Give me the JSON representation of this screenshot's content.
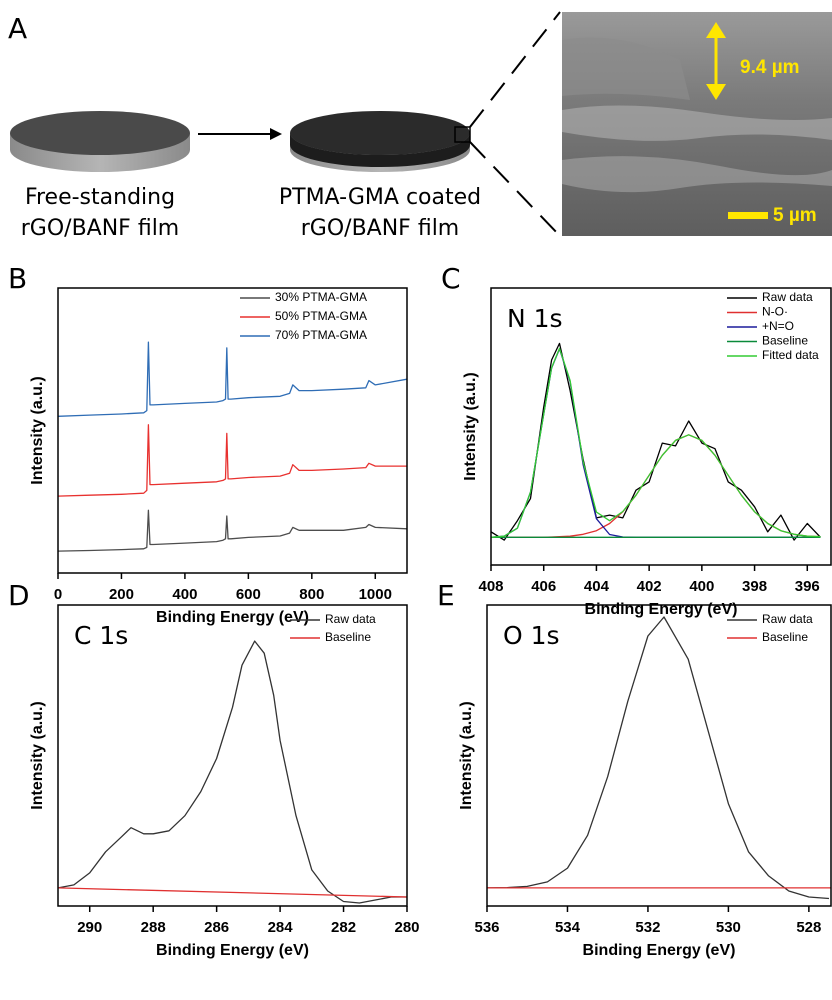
{
  "figure_a": {
    "label": "A",
    "captions": [
      [
        "Free-standing",
        "rGO/BANF film"
      ],
      [
        "PTMA-GMA coated",
        "rGO/BANF film"
      ]
    ],
    "sem_labels": [
      "9.4 µm",
      "5 µm"
    ]
  },
  "chart_data": [
    {
      "type": "line",
      "panel": "B",
      "x_label": "Binding Energy (eV)",
      "y_label": "Intensity (a.u.)",
      "legend": "upper right",
      "x": [
        0,
        100,
        200,
        270,
        280,
        285,
        290,
        300,
        400,
        500,
        520,
        528,
        532,
        536,
        545,
        600,
        700,
        730,
        740,
        760,
        800,
        900,
        970,
        980,
        1000,
        1100
      ],
      "xlim": [
        0,
        1100
      ],
      "xticks": [
        0,
        200,
        400,
        600,
        800,
        1000
      ],
      "ylim": [
        0,
        100
      ],
      "series": [
        {
          "name": "30% PTMA-GMA",
          "color": "#4d4d4d",
          "values": [
            7.7,
            7.9,
            8.2,
            8.5,
            9,
            22,
            10,
            10,
            10.5,
            11,
            11.5,
            12,
            20,
            12,
            12,
            12.5,
            13,
            14,
            16,
            15,
            15,
            15,
            16,
            17,
            16,
            15.5
          ]
        },
        {
          "name": "50% PTMA-GMA",
          "color": "#e8312f",
          "values": [
            27,
            27.3,
            27.6,
            28,
            29,
            52,
            31,
            31,
            31.5,
            32,
            32.5,
            33,
            49,
            33,
            33,
            33.5,
            34,
            35,
            38,
            36,
            36,
            36.5,
            37,
            38.5,
            37.5,
            37.5
          ]
        },
        {
          "name": "70% PTMA-GMA",
          "color": "#2f6db5",
          "values": [
            55,
            55.4,
            55.8,
            56.2,
            57,
            81,
            59,
            59,
            59.5,
            60,
            60.5,
            61,
            79,
            61,
            61,
            61.5,
            62,
            63,
            66,
            64,
            64,
            64.5,
            65,
            67.5,
            66,
            68
          ]
        }
      ]
    },
    {
      "type": "line",
      "panel": "C",
      "annotation": "N 1s",
      "x_label": "Binding Energy (eV)",
      "y_label": "Intensity (a.u.)",
      "legend": "upper right",
      "x": [
        408,
        407.5,
        407,
        406.5,
        406,
        405.7,
        405.4,
        405,
        404.5,
        404,
        403.5,
        403,
        402.5,
        402,
        401.5,
        401,
        400.5,
        400,
        399.5,
        399,
        398.5,
        398,
        397.5,
        397,
        396.5,
        396,
        395.5
      ],
      "xlim": [
        408,
        395.1
      ],
      "xticks": [
        408,
        406,
        404,
        402,
        400,
        398,
        396
      ],
      "ylim": [
        0,
        100
      ],
      "series": [
        {
          "name": "Raw data",
          "color": "#000000",
          "values": [
            12,
            9,
            16,
            24,
            57,
            74,
            80,
            63,
            38,
            17,
            18,
            17,
            27,
            30,
            44,
            43,
            52,
            44,
            42,
            30,
            27,
            21,
            12,
            18,
            9,
            15,
            10
          ]
        },
        {
          "name": "N-O·",
          "color": "#e03030",
          "values": [
            10,
            10,
            10,
            10,
            10,
            10.1,
            10.2,
            10.4,
            11.1,
            12.4,
            15,
            19.2,
            25.2,
            32.4,
            39.6,
            45,
            47,
            45,
            39.6,
            32.4,
            25.2,
            19.2,
            15,
            12.4,
            11.1,
            10.4,
            10.2
          ]
        },
        {
          "name": "+N=O",
          "color": "#1c1c9c",
          "values": [
            10,
            10.4,
            13.3,
            26.3,
            54.4,
            71.1,
            78,
            66.2,
            36.1,
            16.7,
            11,
            10.1,
            10,
            10,
            10,
            10,
            10,
            10,
            10,
            10,
            10,
            10,
            10,
            10,
            10,
            10,
            10
          ]
        },
        {
          "name": "Baseline",
          "color": "#0a8a3a",
          "values": [
            10,
            10,
            10,
            10,
            10,
            10,
            10,
            10,
            10,
            10,
            10,
            10,
            10,
            10,
            10,
            10,
            10,
            10,
            10,
            10,
            10,
            10,
            10,
            10,
            10,
            10,
            10
          ]
        },
        {
          "name": "Fitted data",
          "color": "#33cc33",
          "values": [
            10,
            10.4,
            13.3,
            26.3,
            54.4,
            71.2,
            78.2,
            66.6,
            37.2,
            19.1,
            16,
            19.3,
            25.2,
            32.4,
            39.6,
            45,
            47,
            45,
            39.6,
            32.4,
            25.2,
            19.2,
            15,
            12.4,
            11.1,
            10.4,
            10.2
          ]
        }
      ]
    },
    {
      "type": "line",
      "panel": "D",
      "annotation": "C 1s",
      "x_label": "Binding Energy (eV)",
      "y_label": "Intensity (a.u.)",
      "legend": "upper right",
      "x": [
        291,
        290.5,
        290,
        289.5,
        289,
        288.7,
        288.3,
        288,
        287.5,
        287,
        286.5,
        286,
        285.5,
        285.2,
        284.8,
        284.5,
        284.2,
        284,
        283.5,
        283,
        282.5,
        282,
        281.5,
        281,
        280.5,
        280
      ],
      "xlim": [
        291,
        280
      ],
      "xticks": [
        290,
        288,
        286,
        284,
        282,
        280
      ],
      "ylim": [
        0,
        100
      ],
      "series": [
        {
          "name": "Raw data",
          "color": "#333333",
          "values": [
            6,
            7,
            11,
            18,
            23,
            26,
            24,
            24,
            25,
            30,
            38,
            49,
            66,
            80,
            88,
            84,
            70,
            55,
            30,
            12,
            5,
            1.5,
            1,
            2,
            3,
            3
          ]
        },
        {
          "name": "Baseline",
          "color": "#e03030",
          "x": [
            291,
            280
          ],
          "values": [
            6,
            3
          ]
        }
      ]
    },
    {
      "type": "line",
      "panel": "E",
      "annotation": "O 1s",
      "x_label": "Binding Energy (eV)",
      "y_label": "Intensity (a.u.)",
      "legend": "upper right",
      "x": [
        536,
        535.5,
        535,
        534.5,
        534,
        533.5,
        533,
        532.5,
        532,
        531.6,
        531,
        530.5,
        530,
        529.5,
        529,
        528.5,
        528,
        527.5
      ],
      "xlim": [
        536,
        527.45
      ],
      "xticks": [
        536,
        534,
        532,
        530,
        528
      ],
      "ylim": [
        0,
        100
      ],
      "series": [
        {
          "name": "Raw data",
          "color": "#333333",
          "values": [
            6,
            6.1,
            6.5,
            8,
            12.6,
            23.5,
            43,
            68,
            89.7,
            96,
            82,
            58,
            34,
            18,
            10,
            5,
            3,
            2.5
          ]
        },
        {
          "name": "Baseline",
          "color": "#e03030",
          "x": [
            536,
            527.45
          ],
          "values": [
            6,
            6
          ]
        }
      ]
    }
  ]
}
